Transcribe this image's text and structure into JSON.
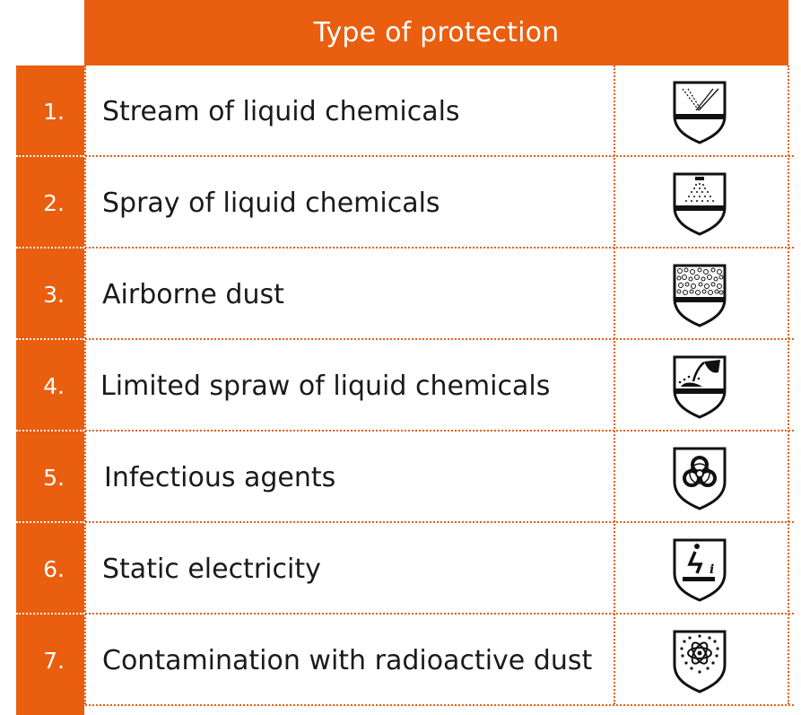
{
  "header": {
    "title": "Type of protection"
  },
  "rows": [
    {
      "number": "1.",
      "label": "Stream of liquid chemicals",
      "icon": "liquid-jet-icon"
    },
    {
      "number": "2.",
      "label": "Spray of liquid chemicals",
      "icon": "spray-icon"
    },
    {
      "number": "3.",
      "label": "Airborne dust",
      "icon": "dust-particles-icon"
    },
    {
      "number": "4.",
      "label": "Limited spraw of liquid chemicals",
      "icon": "pouring-liquid-icon"
    },
    {
      "number": "5.",
      "label": "Infectious agents",
      "icon": "biohazard-icon"
    },
    {
      "number": "6.",
      "label": "Static electricity",
      "icon": "static-electricity-icon"
    },
    {
      "number": "7.",
      "label": "Contamination with radioactive dust",
      "icon": "radioactive-contamination-icon"
    }
  ],
  "colors": {
    "accent": "#e95e0f",
    "text": "#1a1a1a",
    "background": "#ffffff"
  }
}
